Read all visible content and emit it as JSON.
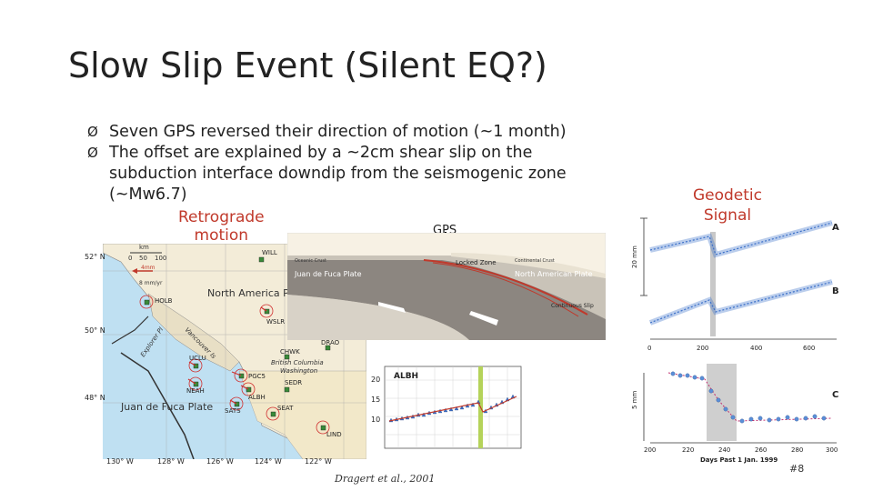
{
  "slide": {
    "title": "Slow Slip Event (Silent EQ?)",
    "bullets": [
      {
        "marker": "Ø",
        "text": "Seven GPS reversed their direction of motion (~1 month)"
      },
      {
        "marker": "Ø",
        "text": "The offset are explained by a ~2cm shear slip on the subduction interface downdip from the seismogenic zone (~Mw6.7)"
      }
    ],
    "retrograde_label_1": "Retrograde",
    "retrograde_label_2": "motion",
    "gps_label": "GPS",
    "geodetic_label_1": "Geodetic",
    "geodetic_label_2": "Signal",
    "citation": "Dragert et al., 2001",
    "page_number": "#8"
  },
  "map": {
    "scale_label": "km",
    "scale_ticks": [
      "0",
      "50",
      "100"
    ],
    "lat_labels": [
      "52° N",
      "50° N",
      "48° N"
    ],
    "lon_labels": [
      "130° W",
      "128° W",
      "126° W",
      "124° W",
      "122° W"
    ],
    "stations": [
      "WILL",
      "HOLB",
      "WSLR",
      "DRAO",
      "CHWK",
      "UCLU",
      "PGC5",
      "NEAH",
      "ALBH",
      "SEDR",
      "SATS",
      "SEAT",
      "LIND"
    ],
    "regions": [
      "North America Plate",
      "Juan de Fuca Plate",
      "British Columbia",
      "Washington",
      "Vancouver Is",
      "Explorer Pl"
    ],
    "legend": [
      "4mm",
      "8 mm/yr"
    ]
  },
  "cross_section": {
    "labels": [
      "Oceanic Crust",
      "Continental Crust",
      "Juan de Fuca Plate",
      "Locked Zone",
      "North American Plate",
      "Continuous Slip"
    ]
  },
  "albh_plot": {
    "station": "ALBH",
    "y_ticks": [
      "20",
      "15",
      "10"
    ]
  },
  "geodetic_plot": {
    "panels": [
      "A",
      "B",
      "C"
    ],
    "scale_20mm": "20 mm",
    "scale_5mm": "5 mm",
    "x_ticks_top": [
      "0",
      "200",
      "400",
      "600"
    ],
    "x_ticks_bottom": [
      "200",
      "220",
      "240",
      "260",
      "280",
      "300"
    ],
    "x_label": "Days Past 1 Jan. 1999"
  },
  "colors": {
    "accent_red": "#c0392b",
    "marker_blue": "#3a6fc8",
    "ocean": "#bfe0f2"
  }
}
